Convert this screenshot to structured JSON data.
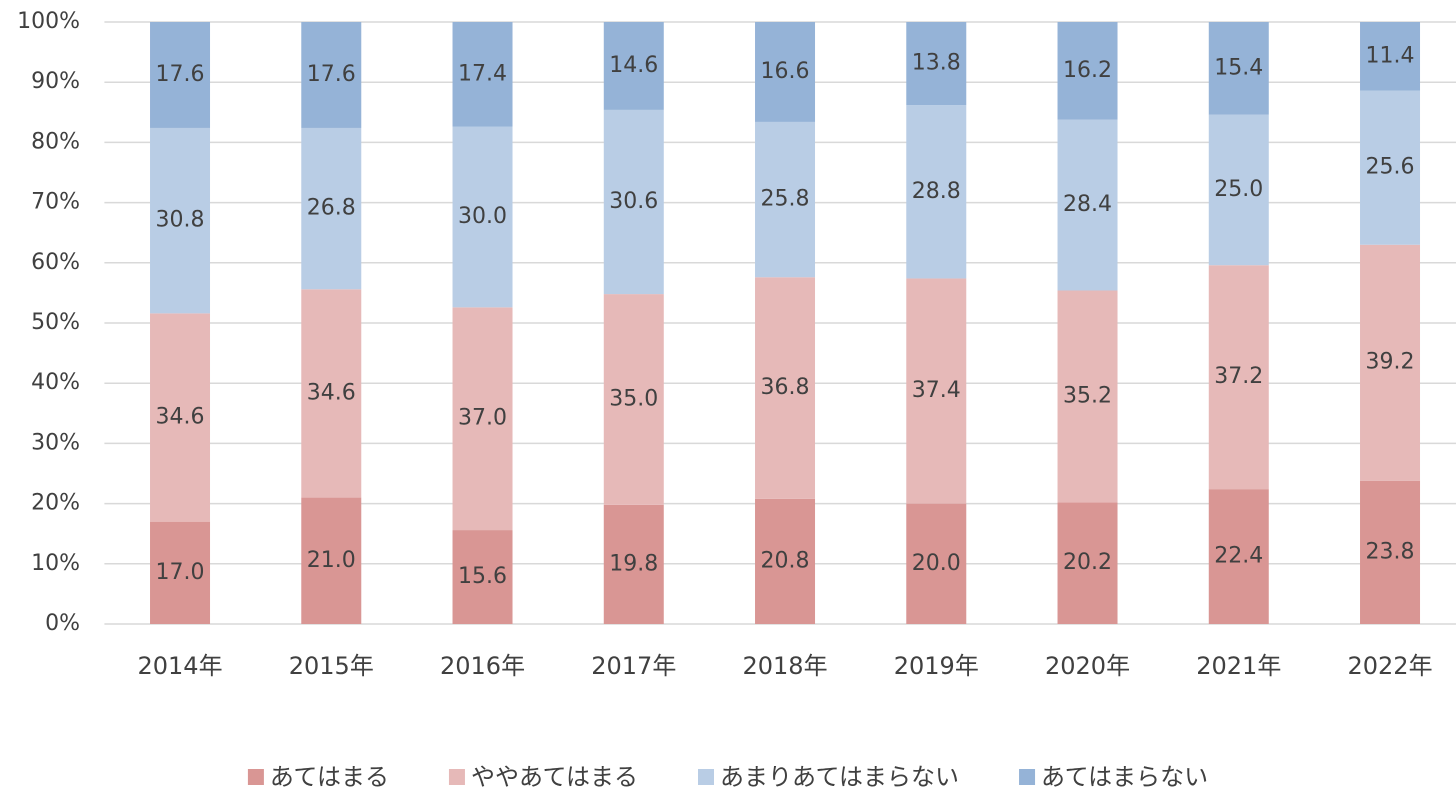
{
  "chart_data": {
    "type": "bar",
    "stacked": true,
    "categories": [
      "2014年",
      "2015年",
      "2016年",
      "2017年",
      "2018年",
      "2019年",
      "2020年",
      "2021年",
      "2022年"
    ],
    "series": [
      {
        "name": "あてはまる",
        "color": "#d99694",
        "values": [
          17,
          21,
          15.6,
          19.8,
          20.8,
          20,
          20.2,
          22.4,
          23.8
        ],
        "value_labels": [
          "17.0",
          "21.0",
          "15.6",
          "19.8",
          "20.8",
          "20.0",
          "20.2",
          "22.4",
          "23.8"
        ]
      },
      {
        "name": "ややあてはまる",
        "color": "#e6b9b8",
        "values": [
          34.6,
          34.6,
          37,
          35,
          36.8,
          37.4,
          35.2,
          37.2,
          39.2
        ],
        "value_labels": [
          "34.6",
          "34.6",
          "37.0",
          "35.0",
          "36.8",
          "37.4",
          "35.2",
          "37.2",
          "39.2"
        ]
      },
      {
        "name": "あまりあてはまらない",
        "color": "#b9cde5",
        "values": [
          30.8,
          26.8,
          30,
          30.6,
          25.8,
          28.8,
          28.4,
          25,
          25.6
        ],
        "value_labels": [
          "30.8",
          "26.8",
          "30.0",
          "30.6",
          "25.8",
          "28.8",
          "28.4",
          "25.0",
          "25.6"
        ]
      },
      {
        "name": "あてはまらない",
        "color": "#95b3d7",
        "values": [
          17.6,
          17.6,
          17.4,
          14.6,
          16.6,
          13.8,
          16.2,
          15.4,
          11.4
        ],
        "value_labels": [
          "17.6",
          "17.6",
          "17.4",
          "14.6",
          "16.6",
          "13.8",
          "16.2",
          "15.4",
          "11.4"
        ]
      }
    ],
    "ylim": [
      0,
      100
    ],
    "yticks": [
      {
        "value": 0,
        "label": "0%"
      },
      {
        "value": 10,
        "label": "10%"
      },
      {
        "value": 20,
        "label": "20%"
      },
      {
        "value": 30,
        "label": "30%"
      },
      {
        "value": 40,
        "label": "40%"
      },
      {
        "value": 50,
        "label": "50%"
      },
      {
        "value": 60,
        "label": "60%"
      },
      {
        "value": 70,
        "label": "70%"
      },
      {
        "value": 80,
        "label": "80%"
      },
      {
        "value": 90,
        "label": "90%"
      },
      {
        "value": 100,
        "label": "100%"
      }
    ],
    "grid": true,
    "legend": "bottom"
  }
}
